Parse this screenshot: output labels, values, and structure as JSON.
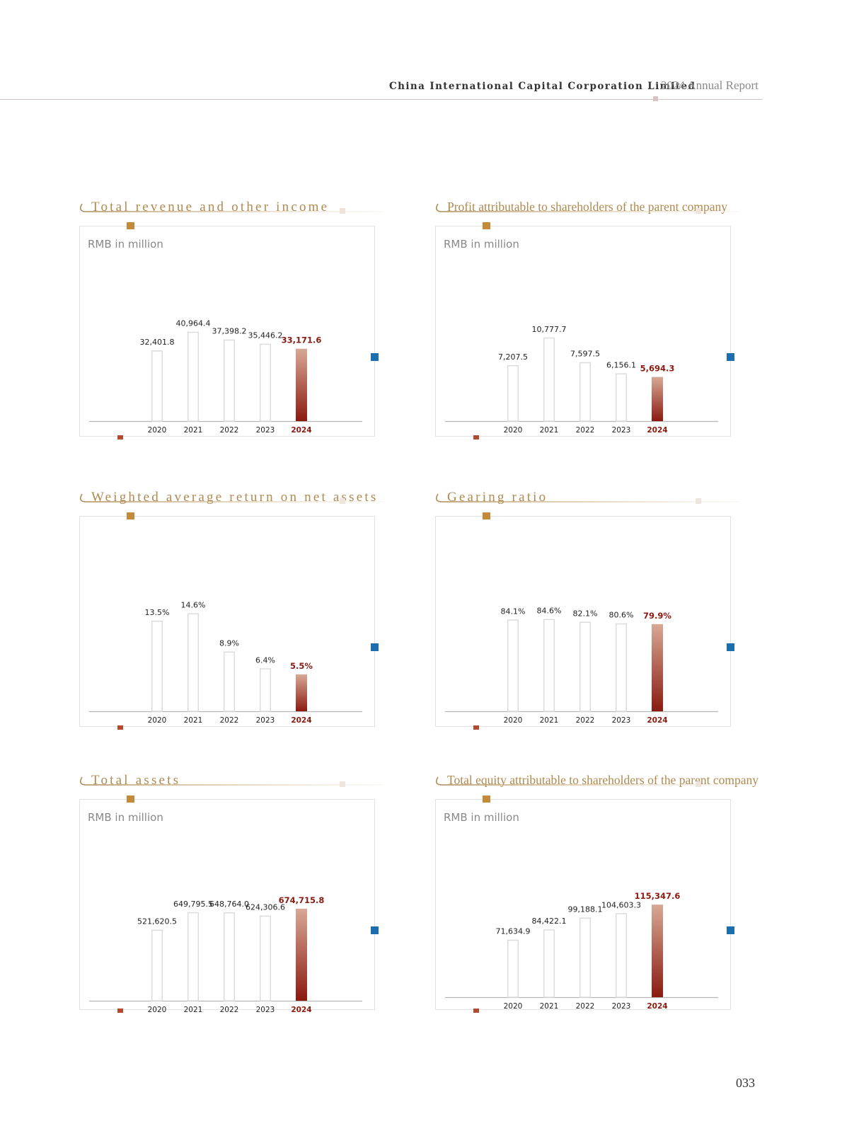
{
  "header": {
    "company": "China International Capital Corporation Limited",
    "report": "2024 Annual Report"
  },
  "page_number": "033",
  "colors": {
    "gold": "#b0894f",
    "highlight": "#8b1a10",
    "highlight_light": "#d7a995",
    "bar_outline": "#dcdcdc",
    "blue_marker": "#1c6fae"
  },
  "chart_data": [
    {
      "type": "bar",
      "title": "Total revenue and other income",
      "unit_label": "RMB in million",
      "categories": [
        "2020",
        "2021",
        "2022",
        "2023",
        "2024"
      ],
      "values": [
        32401.8,
        40964.4,
        37398.2,
        35446.2,
        33171.6
      ],
      "labels": [
        "32,401.8",
        "40,964.4",
        "37,398.2",
        "35,446.2",
        "33,171.6"
      ],
      "highlight_index": 4,
      "ylim": [
        0,
        48000
      ]
    },
    {
      "type": "bar",
      "title": "Profit attributable to shareholders of the parent company",
      "unit_label": "RMB in million",
      "categories": [
        "2020",
        "2021",
        "2022",
        "2023",
        "2024"
      ],
      "values": [
        7207.5,
        10777.7,
        7597.5,
        6156.1,
        5694.3
      ],
      "labels": [
        "7,207.5",
        "10,777.7",
        "7,597.5",
        "6,156.1",
        "5,694.3"
      ],
      "highlight_index": 4,
      "ylim": [
        0,
        13500
      ]
    },
    {
      "type": "bar",
      "title": "Weighted average return on net assets",
      "unit_label": "",
      "categories": [
        "2020",
        "2021",
        "2022",
        "2023",
        "2024"
      ],
      "values": [
        13.5,
        14.6,
        8.9,
        6.4,
        5.5
      ],
      "labels": [
        "13.5%",
        "14.6%",
        "8.9%",
        "6.4%",
        "5.5%"
      ],
      "highlight_index": 4,
      "ylim": [
        0,
        15.6
      ]
    },
    {
      "type": "bar",
      "title": "Gearing ratio",
      "unit_label": "",
      "categories": [
        "2020",
        "2021",
        "2022",
        "2023",
        "2024"
      ],
      "values": [
        84.1,
        84.6,
        82.1,
        80.6,
        79.9
      ],
      "labels": [
        "84.1%",
        "84.6%",
        "82.1%",
        "80.6%",
        "79.9%"
      ],
      "highlight_index": 4,
      "ylim": [
        0,
        96
      ]
    },
    {
      "type": "bar",
      "title": "Total assets",
      "unit_label": "RMB in million",
      "categories": [
        "2020",
        "2021",
        "2022",
        "2023",
        "2024"
      ],
      "values": [
        521620.5,
        649795.5,
        648764.0,
        624306.6,
        674715.8
      ],
      "labels": [
        "521,620.5",
        "649,795.5",
        "648,764.0",
        "624,306.6",
        "674,715.8"
      ],
      "highlight_index": 4,
      "ylim": [
        0,
        815000
      ]
    },
    {
      "type": "bar",
      "title": "Total equity attributable to shareholders of the parent company",
      "unit_label": "RMB in million",
      "categories": [
        "2020",
        "2021",
        "2022",
        "2023",
        "2024"
      ],
      "values": [
        71634.9,
        84422.1,
        99188.1,
        104603.3,
        115347.6
      ],
      "labels": [
        "71,634.9",
        "84,422.1",
        "99,188.1",
        "104,603.3",
        "115,347.6"
      ],
      "highlight_index": 4,
      "ylim": [
        0,
        134000
      ]
    }
  ]
}
